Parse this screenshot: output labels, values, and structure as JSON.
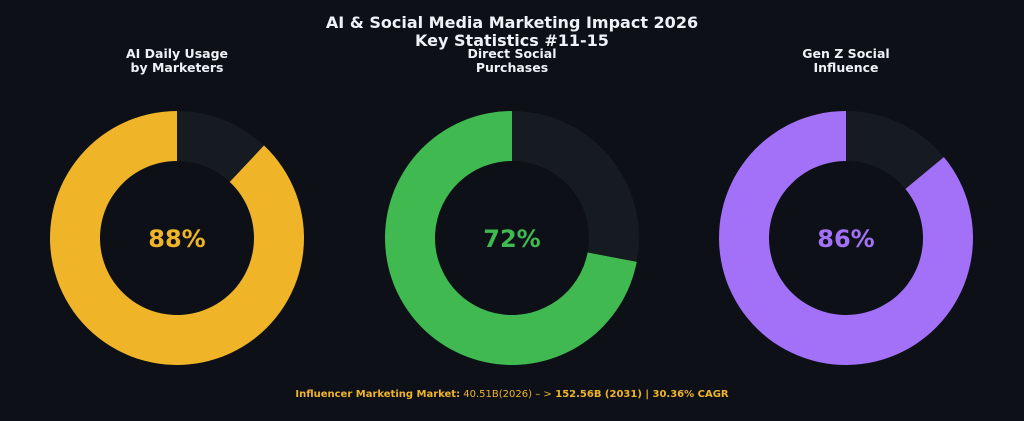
{
  "title_line1": "AI & Social Media Marketing Impact 2026",
  "title_line2": "Key Statistics #11-15",
  "track_color": "#161a21",
  "chart_data": [
    {
      "type": "pie",
      "title": "AI Daily Usage\nby Marketers",
      "value": 88,
      "label": "88%",
      "color": "#f0b429"
    },
    {
      "type": "pie",
      "title": "Direct Social\nPurchases",
      "value": 72,
      "label": "72%",
      "color": "#3fb950"
    },
    {
      "type": "pie",
      "title": "Gen Z Social\nInfluence",
      "value": 86,
      "label": "86%",
      "color": "#a371f7"
    }
  ],
  "footer": {
    "label": "Influencer Marketing Market:",
    "middle": " 40.51B(2026) – >",
    "end": " 152.56B (2031) | 30.36% CAGR"
  }
}
